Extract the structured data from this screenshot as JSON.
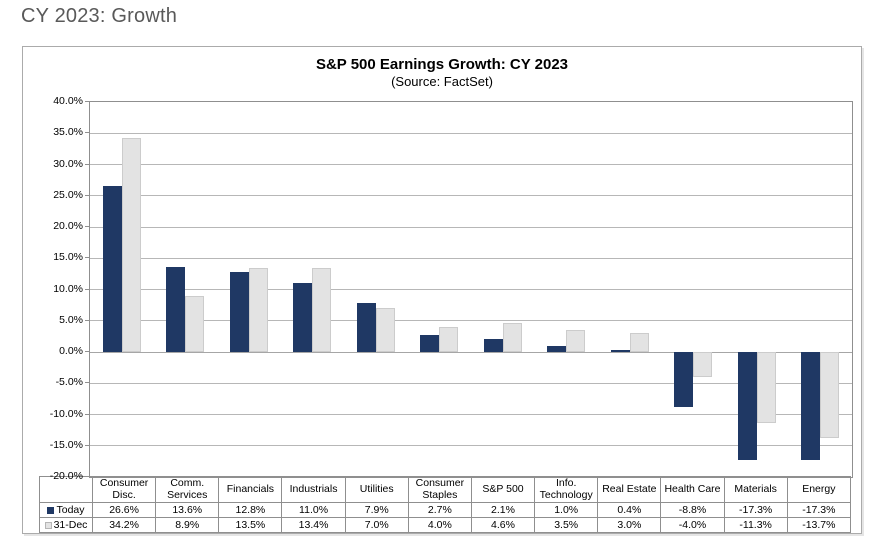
{
  "page": {
    "title": "CY 2023: Growth"
  },
  "chart": {
    "title": "S&P 500 Earnings Growth: CY 2023",
    "subtitle": "(Source: FactSet)",
    "colors": {
      "series_today": "#1F3864",
      "series_dec31": "#E3E3E3",
      "gridline": "#B7B7B7",
      "plot_border": "#8F8F8F",
      "page_title_text": "#595959"
    }
  },
  "chart_data": {
    "type": "bar",
    "title": "S&P 500 Earnings Growth: CY 2023",
    "subtitle": "(Source: FactSet)",
    "categories": [
      "Consumer Disc.",
      "Comm. Services",
      "Financials",
      "Industrials",
      "Utilities",
      "Consumer Staples",
      "S&P 500",
      "Info. Technology",
      "Real Estate",
      "Health Care",
      "Materials",
      "Energy"
    ],
    "series": [
      {
        "name": "Today",
        "color": "#1F3864",
        "values": [
          26.6,
          13.6,
          12.8,
          11.0,
          7.9,
          2.7,
          2.1,
          1.0,
          0.4,
          -8.8,
          -17.3,
          -17.3
        ]
      },
      {
        "name": "31-Dec",
        "color": "#E3E3E3",
        "values": [
          34.2,
          8.9,
          13.5,
          13.4,
          7.0,
          4.0,
          4.6,
          3.5,
          3.0,
          -4.0,
          -11.3,
          -13.7
        ]
      }
    ],
    "ylim": [
      -20,
      40
    ],
    "ytick_step": 5,
    "ytick_labels": [
      "40.0%",
      "35.0%",
      "30.0%",
      "25.0%",
      "20.0%",
      "15.0%",
      "10.0%",
      "5.0%",
      "0.0%",
      "-5.0%",
      "-10.0%",
      "-15.0%",
      "-20.0%"
    ],
    "grid": "horizontal",
    "legend_position": "data-table-left",
    "value_suffix": "%"
  },
  "data_table": {
    "row_labels": [
      "Today",
      "31-Dec"
    ],
    "rows": [
      [
        "26.6%",
        "13.6%",
        "12.8%",
        "11.0%",
        "7.9%",
        "2.7%",
        "2.1%",
        "1.0%",
        "0.4%",
        "-8.8%",
        "-17.3%",
        "-17.3%"
      ],
      [
        "34.2%",
        "8.9%",
        "13.5%",
        "13.4%",
        "7.0%",
        "4.0%",
        "4.6%",
        "3.5%",
        "3.0%",
        "-4.0%",
        "-11.3%",
        "-13.7%"
      ]
    ]
  }
}
